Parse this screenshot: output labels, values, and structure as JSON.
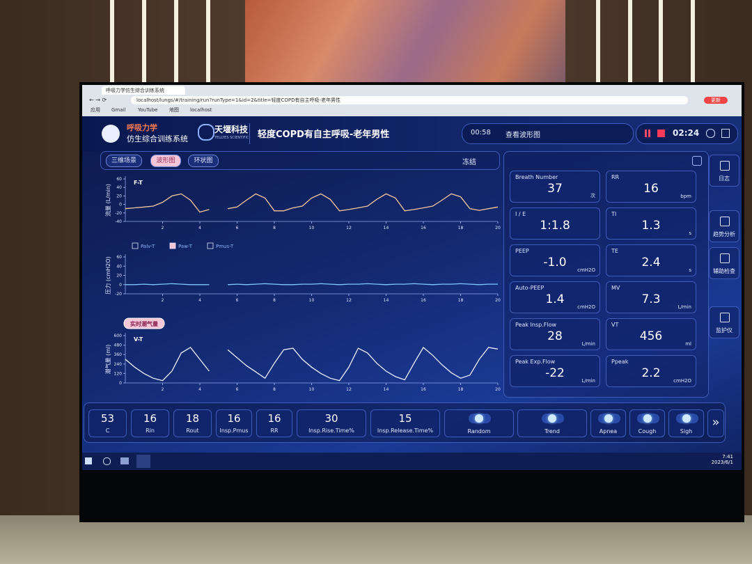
{
  "browser": {
    "tab_title": "呼吸力学仿生综合训练系统",
    "url": "localhost/lungs/#/training/run?runType=1&id=2&title=轻度COPD有自主呼吸-老年男性",
    "bookmarks": [
      "应用",
      "Gmail",
      "YouTube",
      "地图",
      "localhost"
    ],
    "profile": "更新"
  },
  "header": {
    "app_name": "呼吸力学",
    "app_subtitle": "仿生综合训练系统",
    "company": "天堰科技",
    "company_en": "TELLYES SCIENTIFIC",
    "scenario": "轻度COPD有自主呼吸-老年男性",
    "elapsed": "00:58",
    "view_button": "查看波形图",
    "remaining": "02:24"
  },
  "tabs": [
    "三维场景",
    "波形图",
    "环状图"
  ],
  "active_tab": 1,
  "freeze": "冻结",
  "chart_data": [
    {
      "type": "line",
      "label": "F-T",
      "y_label": "流量 (L/min)",
      "color": "#f6c89c",
      "x": [
        0,
        0.5,
        1,
        1.5,
        2,
        2.5,
        3,
        3.5,
        4,
        4.5,
        5,
        5.5,
        6,
        6.5,
        7,
        7.5,
        8,
        8.5,
        9,
        9.5,
        10,
        10.5,
        11,
        11.5,
        12,
        12.5,
        13,
        13.5,
        14,
        14.5,
        15,
        15.5,
        16,
        16.5,
        17,
        17.5,
        18,
        18.5,
        19,
        19.5,
        20
      ],
      "values": [
        -10,
        -8,
        -6,
        -4,
        5,
        20,
        25,
        10,
        -18,
        -12,
        null,
        -10,
        -6,
        10,
        25,
        15,
        -15,
        -15,
        -8,
        -4,
        15,
        25,
        12,
        -15,
        -12,
        -8,
        -4,
        12,
        25,
        15,
        -15,
        -12,
        -8,
        -4,
        10,
        25,
        18,
        -10,
        -14,
        -10,
        -6
      ],
      "xlim": [
        0,
        20
      ],
      "xticks": [
        2,
        4,
        6,
        8,
        10,
        12,
        14,
        16,
        18,
        20
      ],
      "ylim": [
        -40,
        60
      ],
      "yticks": [
        -40,
        -20,
        0,
        20,
        40,
        60
      ]
    },
    {
      "type": "line",
      "y_label": "压力 (cmH2O)",
      "color": "#7fc8ff",
      "legend": [
        {
          "name": "Palv-T",
          "checked": false
        },
        {
          "name": "Paw-T",
          "checked": true
        },
        {
          "name": "Pmus-T",
          "checked": false
        }
      ],
      "x": [
        0,
        0.5,
        1,
        1.5,
        2,
        2.5,
        3,
        3.5,
        4,
        4.5,
        5,
        5.5,
        6,
        6.5,
        7,
        7.5,
        8,
        8.5,
        9,
        9.5,
        10,
        10.5,
        11,
        11.5,
        12,
        12.5,
        13,
        13.5,
        14,
        14.5,
        15,
        15.5,
        16,
        16.5,
        17,
        17.5,
        18,
        18.5,
        19,
        19.5,
        20
      ],
      "values": [
        0,
        0,
        1,
        0,
        1,
        2,
        1,
        0,
        0,
        0,
        null,
        0,
        1,
        0,
        1,
        2,
        1,
        0,
        0,
        1,
        1,
        2,
        1,
        0,
        1,
        1,
        2,
        1,
        0,
        1,
        1,
        2,
        1,
        0,
        1,
        1,
        2,
        1,
        0,
        1,
        1
      ],
      "xlim": [
        0,
        20
      ],
      "xticks": [
        2,
        4,
        6,
        8,
        10,
        12,
        14,
        16,
        18,
        20
      ],
      "ylim": [
        -20,
        60
      ],
      "yticks": [
        -20,
        0,
        20,
        40,
        60
      ]
    },
    {
      "type": "line",
      "badge": "实时潮气量",
      "label": "V-T",
      "y_label": "潮气量 (ml)",
      "color": "#eef3ff",
      "x": [
        0,
        0.5,
        1,
        1.5,
        2,
        2.5,
        3,
        3.5,
        4,
        4.5,
        5,
        5.5,
        6,
        6.5,
        7,
        7.5,
        8,
        8.5,
        9,
        9.5,
        10,
        10.5,
        11,
        11.5,
        12,
        12.5,
        13,
        13.5,
        14,
        14.5,
        15,
        15.5,
        16,
        16.5,
        17,
        17.5,
        18,
        18.5,
        19,
        19.5,
        20
      ],
      "values": [
        300,
        200,
        120,
        60,
        30,
        150,
        380,
        450,
        300,
        150,
        null,
        420,
        320,
        220,
        140,
        60,
        250,
        420,
        440,
        300,
        200,
        120,
        60,
        30,
        200,
        440,
        380,
        250,
        150,
        80,
        40,
        250,
        450,
        350,
        230,
        130,
        60,
        100,
        300,
        450,
        430
      ],
      "xlim": [
        0,
        20
      ],
      "xticks": [
        2,
        4,
        6,
        8,
        10,
        12,
        14,
        16,
        18,
        20
      ],
      "ylim": [
        0,
        600
      ],
      "yticks": [
        0,
        120,
        240,
        360,
        480,
        600
      ]
    }
  ],
  "metrics": [
    {
      "label": "Breath Number",
      "value": 37,
      "unit": "次"
    },
    {
      "label": "RR",
      "value": 16,
      "unit": "bpm"
    },
    {
      "label": "I / E",
      "value": "1:1.8"
    },
    {
      "label": "TI",
      "value": 1.3,
      "unit": "s"
    },
    {
      "label": "PEEP",
      "value": "-1.0",
      "unit": "cmH2O"
    },
    {
      "label": "TE",
      "value": 2.4,
      "unit": "s"
    },
    {
      "label": "Auto-PEEP",
      "value": 1.4,
      "unit": "cmH2O"
    },
    {
      "label": "MV",
      "value": 7.3,
      "unit": "L/min"
    },
    {
      "label": "Peak Insp.Flow",
      "value": 28,
      "unit": "L/min"
    },
    {
      "label": "VT",
      "value": 456,
      "unit": "ml"
    },
    {
      "label": "Peak Exp.Flow",
      "value": -22,
      "unit": "L/min"
    },
    {
      "label": "Ppeak",
      "value": 2.2,
      "unit": "cmH2O"
    }
  ],
  "controls": [
    {
      "value": 53,
      "label": "C"
    },
    {
      "value": 16,
      "label": "Rin"
    },
    {
      "value": 18,
      "label": "Rout"
    },
    {
      "value": 16,
      "label": "Insp.Pmus"
    },
    {
      "value": 16,
      "label": "RR"
    },
    {
      "value": 30,
      "label": "Insp.Rise.Time%"
    },
    {
      "value": 15,
      "label": "Insp.Release.Time%"
    }
  ],
  "toggles": [
    "Random",
    "Trend",
    "Apnea",
    "Cough",
    "Sigh"
  ],
  "more": "»",
  "side_nav": [
    "日志",
    "趋势分析",
    "辅助检查",
    "监护仪"
  ],
  "taskbar": {
    "time": "7:41",
    "date": "2023/6/1"
  }
}
